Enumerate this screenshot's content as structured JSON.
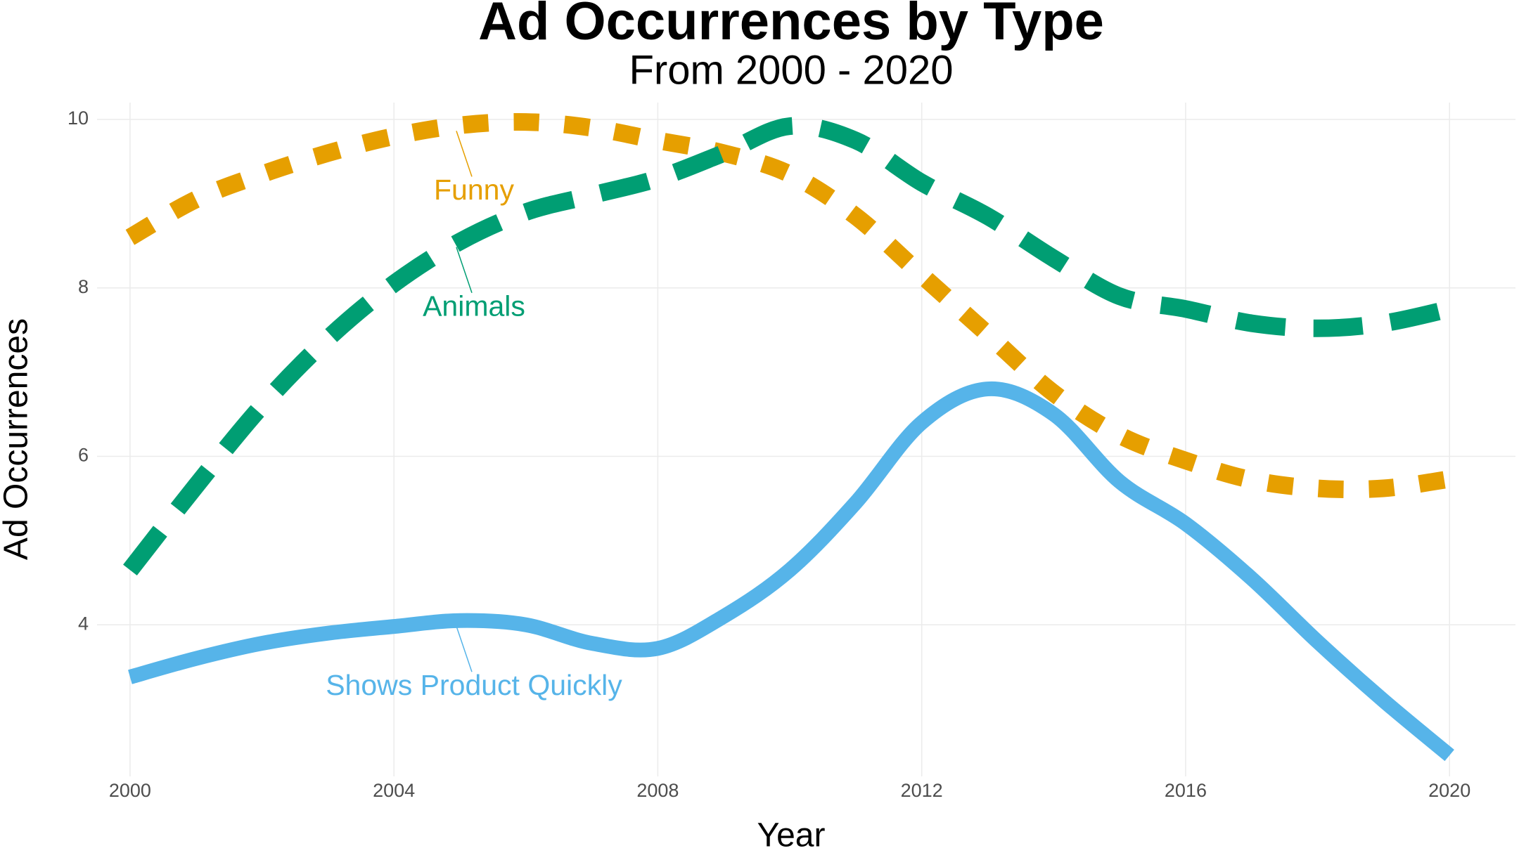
{
  "chart_data": {
    "type": "line",
    "title": "Ad Occurrences by Type",
    "subtitle": "From 2000 - 2020",
    "x_label": "Year",
    "y_label": "Ad Occurrences",
    "x": [
      2000,
      2001,
      2002,
      2003,
      2004,
      2005,
      2006,
      2007,
      2008,
      2009,
      2010,
      2011,
      2012,
      2013,
      2014,
      2015,
      2016,
      2017,
      2018,
      2019,
      2020
    ],
    "series": [
      {
        "name": "Funny",
        "color": "#E69F00",
        "dash": "dashed",
        "values": [
          8.6,
          9.05,
          9.35,
          9.6,
          9.8,
          9.93,
          9.97,
          9.9,
          9.75,
          9.6,
          9.35,
          8.85,
          8.15,
          7.45,
          6.75,
          6.25,
          5.95,
          5.72,
          5.62,
          5.62,
          5.73
        ]
      },
      {
        "name": "Animals",
        "color": "#009E73",
        "dash": "longdash",
        "values": [
          4.65,
          5.65,
          6.6,
          7.4,
          8.05,
          8.55,
          8.9,
          9.1,
          9.3,
          9.6,
          9.92,
          9.75,
          9.25,
          8.85,
          8.35,
          7.9,
          7.75,
          7.58,
          7.52,
          7.58,
          7.75
        ]
      },
      {
        "name": "Shows Product Quickly",
        "color": "#56B4E9",
        "dash": "solid",
        "values": [
          3.38,
          3.6,
          3.78,
          3.9,
          3.98,
          4.05,
          4.0,
          3.78,
          3.72,
          4.1,
          4.65,
          5.45,
          6.4,
          6.8,
          6.5,
          5.7,
          5.2,
          4.55,
          3.8,
          3.1,
          2.45
        ]
      }
    ],
    "xlim": [
      1999.5,
      2021
    ],
    "xticks": [
      2000,
      2004,
      2008,
      2012,
      2016,
      2020
    ],
    "ylim": [
      2.2,
      10.2
    ],
    "yticks": [
      4,
      6,
      8,
      10
    ],
    "grid": true
  }
}
